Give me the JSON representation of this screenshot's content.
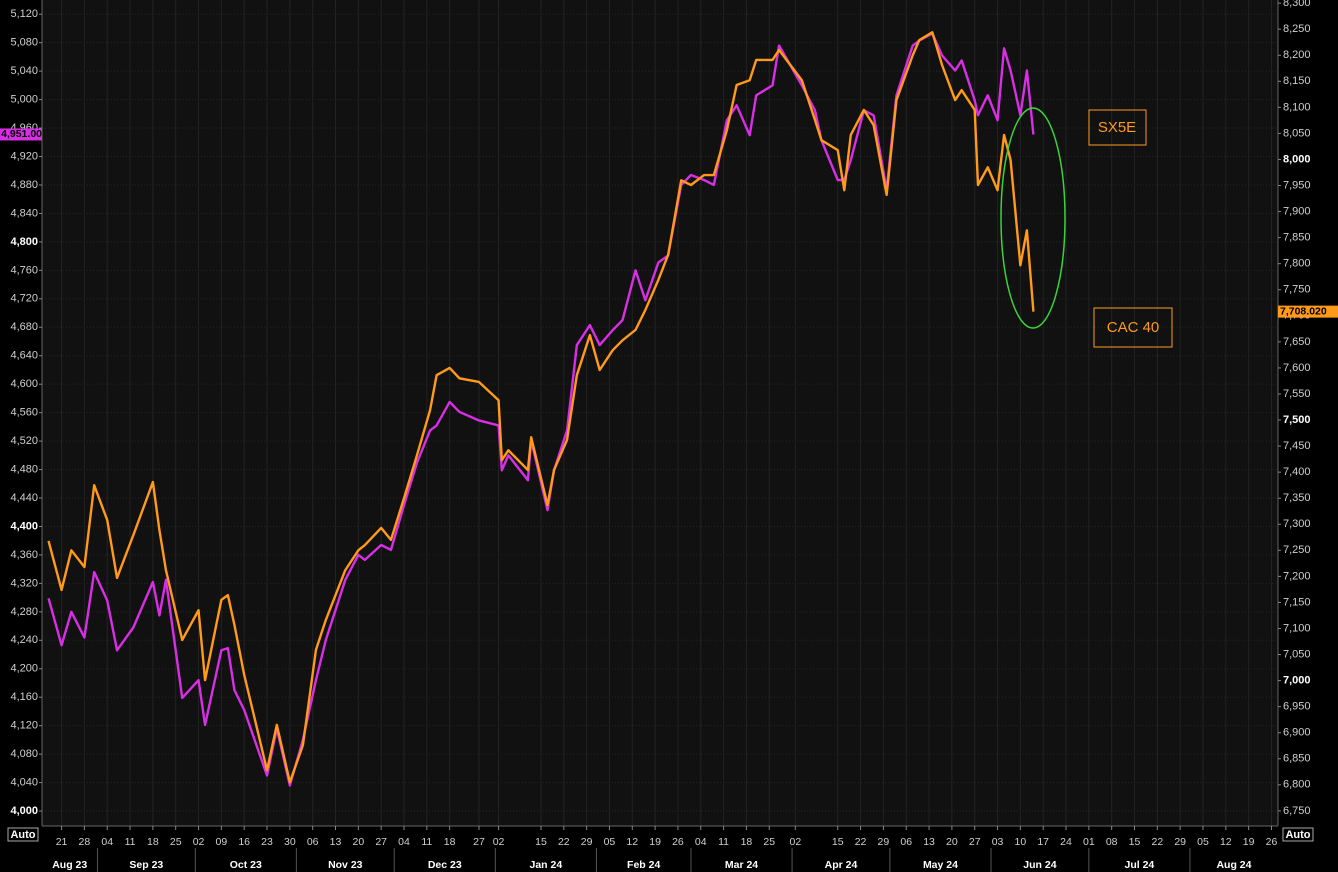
{
  "chart_data": {
    "type": "line",
    "x": [
      "2023-08-17",
      "2023-08-21",
      "2023-08-24",
      "2023-08-28",
      "2023-08-31",
      "2023-09-04",
      "2023-09-07",
      "2023-09-12",
      "2023-09-18",
      "2023-09-20",
      "2023-09-22",
      "2023-09-27",
      "2023-10-02",
      "2023-10-04",
      "2023-10-09",
      "2023-10-11",
      "2023-10-13",
      "2023-10-16",
      "2023-10-23",
      "2023-10-26",
      "2023-10-30",
      "2023-11-03",
      "2023-11-07",
      "2023-11-10",
      "2023-11-16",
      "2023-11-20",
      "2023-11-22",
      "2023-11-27",
      "2023-11-30",
      "2023-12-04",
      "2023-12-08",
      "2023-12-12",
      "2023-12-14",
      "2023-12-18",
      "2023-12-21",
      "2023-12-27",
      "2024-01-02",
      "2024-01-03",
      "2024-01-05",
      "2024-01-11",
      "2024-01-12",
      "2024-01-17",
      "2024-01-19",
      "2024-01-23",
      "2024-01-26",
      "2024-01-30",
      "2024-02-02",
      "2024-02-06",
      "2024-02-09",
      "2024-02-13",
      "2024-02-16",
      "2024-02-20",
      "2024-02-23",
      "2024-02-27",
      "2024-03-01",
      "2024-03-05",
      "2024-03-08",
      "2024-03-12",
      "2024-03-15",
      "2024-03-19",
      "2024-03-21",
      "2024-03-26",
      "2024-03-28",
      "2024-04-04",
      "2024-04-08",
      "2024-04-10",
      "2024-04-15",
      "2024-04-17",
      "2024-04-19",
      "2024-04-23",
      "2024-04-26",
      "2024-04-30",
      "2024-05-03",
      "2024-05-08",
      "2024-05-10",
      "2024-05-14",
      "2024-05-17",
      "2024-05-21",
      "2024-05-23",
      "2024-05-27",
      "2024-05-28",
      "2024-05-31",
      "2024-06-03",
      "2024-06-05",
      "2024-06-07",
      "2024-06-10",
      "2024-06-12",
      "2024-06-14"
    ],
    "series": [
      {
        "name": "SX5E",
        "color": "#d82ee6",
        "axis": "y",
        "last_label": "4,951.00",
        "values": [
          4299,
          4233,
          4280,
          4244,
          4336,
          4296,
          4226,
          4258,
          4322,
          4275,
          4325,
          4159,
          4184,
          4121,
          4226,
          4229,
          4170,
          4142,
          4050,
          4116,
          4036,
          4100,
          4184,
          4240,
          4325,
          4360,
          4353,
          4374,
          4367,
          4430,
          4490,
          4535,
          4542,
          4575,
          4561,
          4549,
          4542,
          4479,
          4500,
          4465,
          4521,
          4423,
          4479,
          4535,
          4655,
          4683,
          4655,
          4676,
          4690,
          4760,
          4718,
          4771,
          4781,
          4880,
          4894,
          4887,
          4880,
          4971,
          4992,
          4950,
          5006,
          5020,
          5076,
          5020,
          4985,
          4943,
          4887,
          4887,
          4915,
          4985,
          4978,
          4873,
          5006,
          5076,
          5083,
          5093,
          5062,
          5041,
          5055,
          4999,
          4978,
          5006,
          4971,
          5072,
          5041,
          4978,
          5041,
          4951
        ]
      },
      {
        "name": "CAC 40",
        "color": "#ff9a1a",
        "axis": "y2",
        "last_label": "7,708.020",
        "values": [
          7268,
          7174,
          7250,
          7218,
          7375,
          7308,
          7197,
          7279,
          7381,
          7289,
          7212,
          7078,
          7135,
          7001,
          7155,
          7164,
          7107,
          7011,
          6828,
          6915,
          6805,
          6876,
          7059,
          7116,
          7212,
          7250,
          7260,
          7293,
          7270,
          7350,
          7433,
          7519,
          7586,
          7600,
          7580,
          7573,
          7538,
          7423,
          7442,
          7404,
          7467,
          7337,
          7404,
          7462,
          7586,
          7663,
          7596,
          7634,
          7653,
          7673,
          7711,
          7769,
          7817,
          7960,
          7951,
          7970,
          7970,
          8056,
          8143,
          8152,
          8191,
          8191,
          8210,
          8152,
          8076,
          8037,
          8018,
          7941,
          8047,
          8095,
          8066,
          7932,
          8114,
          8200,
          8229,
          8244,
          8181,
          8114,
          8133,
          8095,
          7951,
          7985,
          7941,
          8047,
          7999,
          7797,
          7864,
          7708.02
        ]
      }
    ],
    "xlim": [
      "2023-08-15",
      "2024-08-28"
    ],
    "xticks": [
      {
        "value": "2023-08-21",
        "label": "21"
      },
      {
        "value": "2023-08-28",
        "label": "28"
      },
      {
        "value": "2023-09-04",
        "label": "04"
      },
      {
        "value": "2023-09-11",
        "label": "11"
      },
      {
        "value": "2023-09-18",
        "label": "18"
      },
      {
        "value": "2023-09-25",
        "label": "25"
      },
      {
        "value": "2023-10-02",
        "label": "02"
      },
      {
        "value": "2023-10-09",
        "label": "09"
      },
      {
        "value": "2023-10-16",
        "label": "16"
      },
      {
        "value": "2023-10-23",
        "label": "23"
      },
      {
        "value": "2023-10-30",
        "label": "30"
      },
      {
        "value": "2023-11-06",
        "label": "06"
      },
      {
        "value": "2023-11-13",
        "label": "13"
      },
      {
        "value": "2023-11-20",
        "label": "20"
      },
      {
        "value": "2023-11-27",
        "label": "27"
      },
      {
        "value": "2023-12-04",
        "label": "04"
      },
      {
        "value": "2023-12-11",
        "label": "11"
      },
      {
        "value": "2023-12-18",
        "label": "18"
      },
      {
        "value": "2023-12-27",
        "label": "27"
      },
      {
        "value": "2024-01-02",
        "label": "02"
      },
      {
        "value": "2024-01-15",
        "label": "15"
      },
      {
        "value": "2024-01-22",
        "label": "22"
      },
      {
        "value": "2024-01-29",
        "label": "29"
      },
      {
        "value": "2024-02-05",
        "label": "05"
      },
      {
        "value": "2024-02-12",
        "label": "12"
      },
      {
        "value": "2024-02-19",
        "label": "19"
      },
      {
        "value": "2024-02-26",
        "label": "26"
      },
      {
        "value": "2024-03-04",
        "label": "04"
      },
      {
        "value": "2024-03-11",
        "label": "11"
      },
      {
        "value": "2024-03-18",
        "label": "18"
      },
      {
        "value": "2024-03-25",
        "label": "25"
      },
      {
        "value": "2024-04-02",
        "label": "02"
      },
      {
        "value": "2024-04-15",
        "label": "15"
      },
      {
        "value": "2024-04-22",
        "label": "22"
      },
      {
        "value": "2024-04-29",
        "label": "29"
      },
      {
        "value": "2024-05-06",
        "label": "06"
      },
      {
        "value": "2024-05-13",
        "label": "13"
      },
      {
        "value": "2024-05-20",
        "label": "20"
      },
      {
        "value": "2024-05-27",
        "label": "27"
      },
      {
        "value": "2024-06-03",
        "label": "03"
      },
      {
        "value": "2024-06-10",
        "label": "10"
      },
      {
        "value": "2024-06-17",
        "label": "17"
      },
      {
        "value": "2024-06-24",
        "label": "24"
      },
      {
        "value": "2024-07-01",
        "label": "01"
      },
      {
        "value": "2024-07-08",
        "label": "08"
      },
      {
        "value": "2024-07-15",
        "label": "15"
      },
      {
        "value": "2024-07-22",
        "label": "22"
      },
      {
        "value": "2024-07-29",
        "label": "29"
      },
      {
        "value": "2024-08-05",
        "label": "05"
      },
      {
        "value": "2024-08-12",
        "label": "12"
      },
      {
        "value": "2024-08-19",
        "label": "19"
      },
      {
        "value": "2024-08-26",
        "label": "26"
      }
    ],
    "month_labels": [
      {
        "value": "2023-08",
        "label": "Aug 23"
      },
      {
        "value": "2023-09",
        "label": "Sep 23"
      },
      {
        "value": "2023-10",
        "label": "Oct 23"
      },
      {
        "value": "2023-11",
        "label": "Nov 23"
      },
      {
        "value": "2023-12",
        "label": "Dec 23"
      },
      {
        "value": "2024-01",
        "label": "Jan 24"
      },
      {
        "value": "2024-02",
        "label": "Feb 24"
      },
      {
        "value": "2024-03",
        "label": "Mar 24"
      },
      {
        "value": "2024-04",
        "label": "Apr 24"
      },
      {
        "value": "2024-05",
        "label": "May 24"
      },
      {
        "value": "2024-06",
        "label": "Jun 24"
      },
      {
        "value": "2024-07",
        "label": "Jul 24"
      },
      {
        "value": "2024-08",
        "label": "Aug 24"
      }
    ],
    "ylim": [
      3979,
      5140
    ],
    "yticks": [
      {
        "value": 4000,
        "label": "4,000"
      },
      {
        "value": 4040,
        "label": "4,040"
      },
      {
        "value": 4080,
        "label": "4,080"
      },
      {
        "value": 4120,
        "label": "4,120"
      },
      {
        "value": 4160,
        "label": "4,160"
      },
      {
        "value": 4200,
        "label": "4,200"
      },
      {
        "value": 4240,
        "label": "4,240"
      },
      {
        "value": 4280,
        "label": "4,280"
      },
      {
        "value": 4320,
        "label": "4,320"
      },
      {
        "value": 4360,
        "label": "4,360"
      },
      {
        "value": 4400,
        "label": "4,400"
      },
      {
        "value": 4440,
        "label": "4,440"
      },
      {
        "value": 4480,
        "label": "4,480"
      },
      {
        "value": 4520,
        "label": "4,520"
      },
      {
        "value": 4560,
        "label": "4,560"
      },
      {
        "value": 4600,
        "label": "4,600"
      },
      {
        "value": 4640,
        "label": "4,640"
      },
      {
        "value": 4680,
        "label": "4,680"
      },
      {
        "value": 4720,
        "label": "4,720"
      },
      {
        "value": 4760,
        "label": "4,760"
      },
      {
        "value": 4800,
        "label": "4,800"
      },
      {
        "value": 4840,
        "label": "4,840"
      },
      {
        "value": 4880,
        "label": "4,880"
      },
      {
        "value": 4920,
        "label": "4,920"
      },
      {
        "value": 4960,
        "label": "4,960"
      },
      {
        "value": 5000,
        "label": "5,000"
      },
      {
        "value": 5040,
        "label": "5,040"
      },
      {
        "value": 5080,
        "label": "5,080"
      },
      {
        "value": 5120,
        "label": "5,120"
      }
    ],
    "y2lim": [
      6721,
      8306
    ],
    "y2ticks": [
      {
        "value": 6750,
        "label": "6,750"
      },
      {
        "value": 6800,
        "label": "6,800"
      },
      {
        "value": 6850,
        "label": "6,850"
      },
      {
        "value": 6900,
        "label": "6,900"
      },
      {
        "value": 6950,
        "label": "6,950"
      },
      {
        "value": 7000,
        "label": "7,000"
      },
      {
        "value": 7050,
        "label": "7,050"
      },
      {
        "value": 7100,
        "label": "7,100"
      },
      {
        "value": 7150,
        "label": "7,150"
      },
      {
        "value": 7200,
        "label": "7,200"
      },
      {
        "value": 7250,
        "label": "7,250"
      },
      {
        "value": 7300,
        "label": "7,300"
      },
      {
        "value": 7350,
        "label": "7,350"
      },
      {
        "value": 7400,
        "label": "7,400"
      },
      {
        "value": 7450,
        "label": "7,450"
      },
      {
        "value": 7500,
        "label": "7,500"
      },
      {
        "value": 7550,
        "label": "7,550"
      },
      {
        "value": 7600,
        "label": "7,600"
      },
      {
        "value": 7650,
        "label": "7,650"
      },
      {
        "value": 7700,
        "label": "7,700"
      },
      {
        "value": 7750,
        "label": "7,750"
      },
      {
        "value": 7800,
        "label": "7,800"
      },
      {
        "value": 7850,
        "label": "7,850"
      },
      {
        "value": 7900,
        "label": "7,900"
      },
      {
        "value": 7950,
        "label": "7,950"
      },
      {
        "value": 8000,
        "label": "8,000"
      },
      {
        "value": 8050,
        "label": "8,050"
      },
      {
        "value": 8100,
        "label": "8,100"
      },
      {
        "value": 8150,
        "label": "8,150"
      },
      {
        "value": 8200,
        "label": "8,200"
      },
      {
        "value": 8250,
        "label": "8,250"
      },
      {
        "value": 8300,
        "label": "8,300"
      }
    ],
    "grid": true,
    "scale_mode": "Auto"
  }
}
